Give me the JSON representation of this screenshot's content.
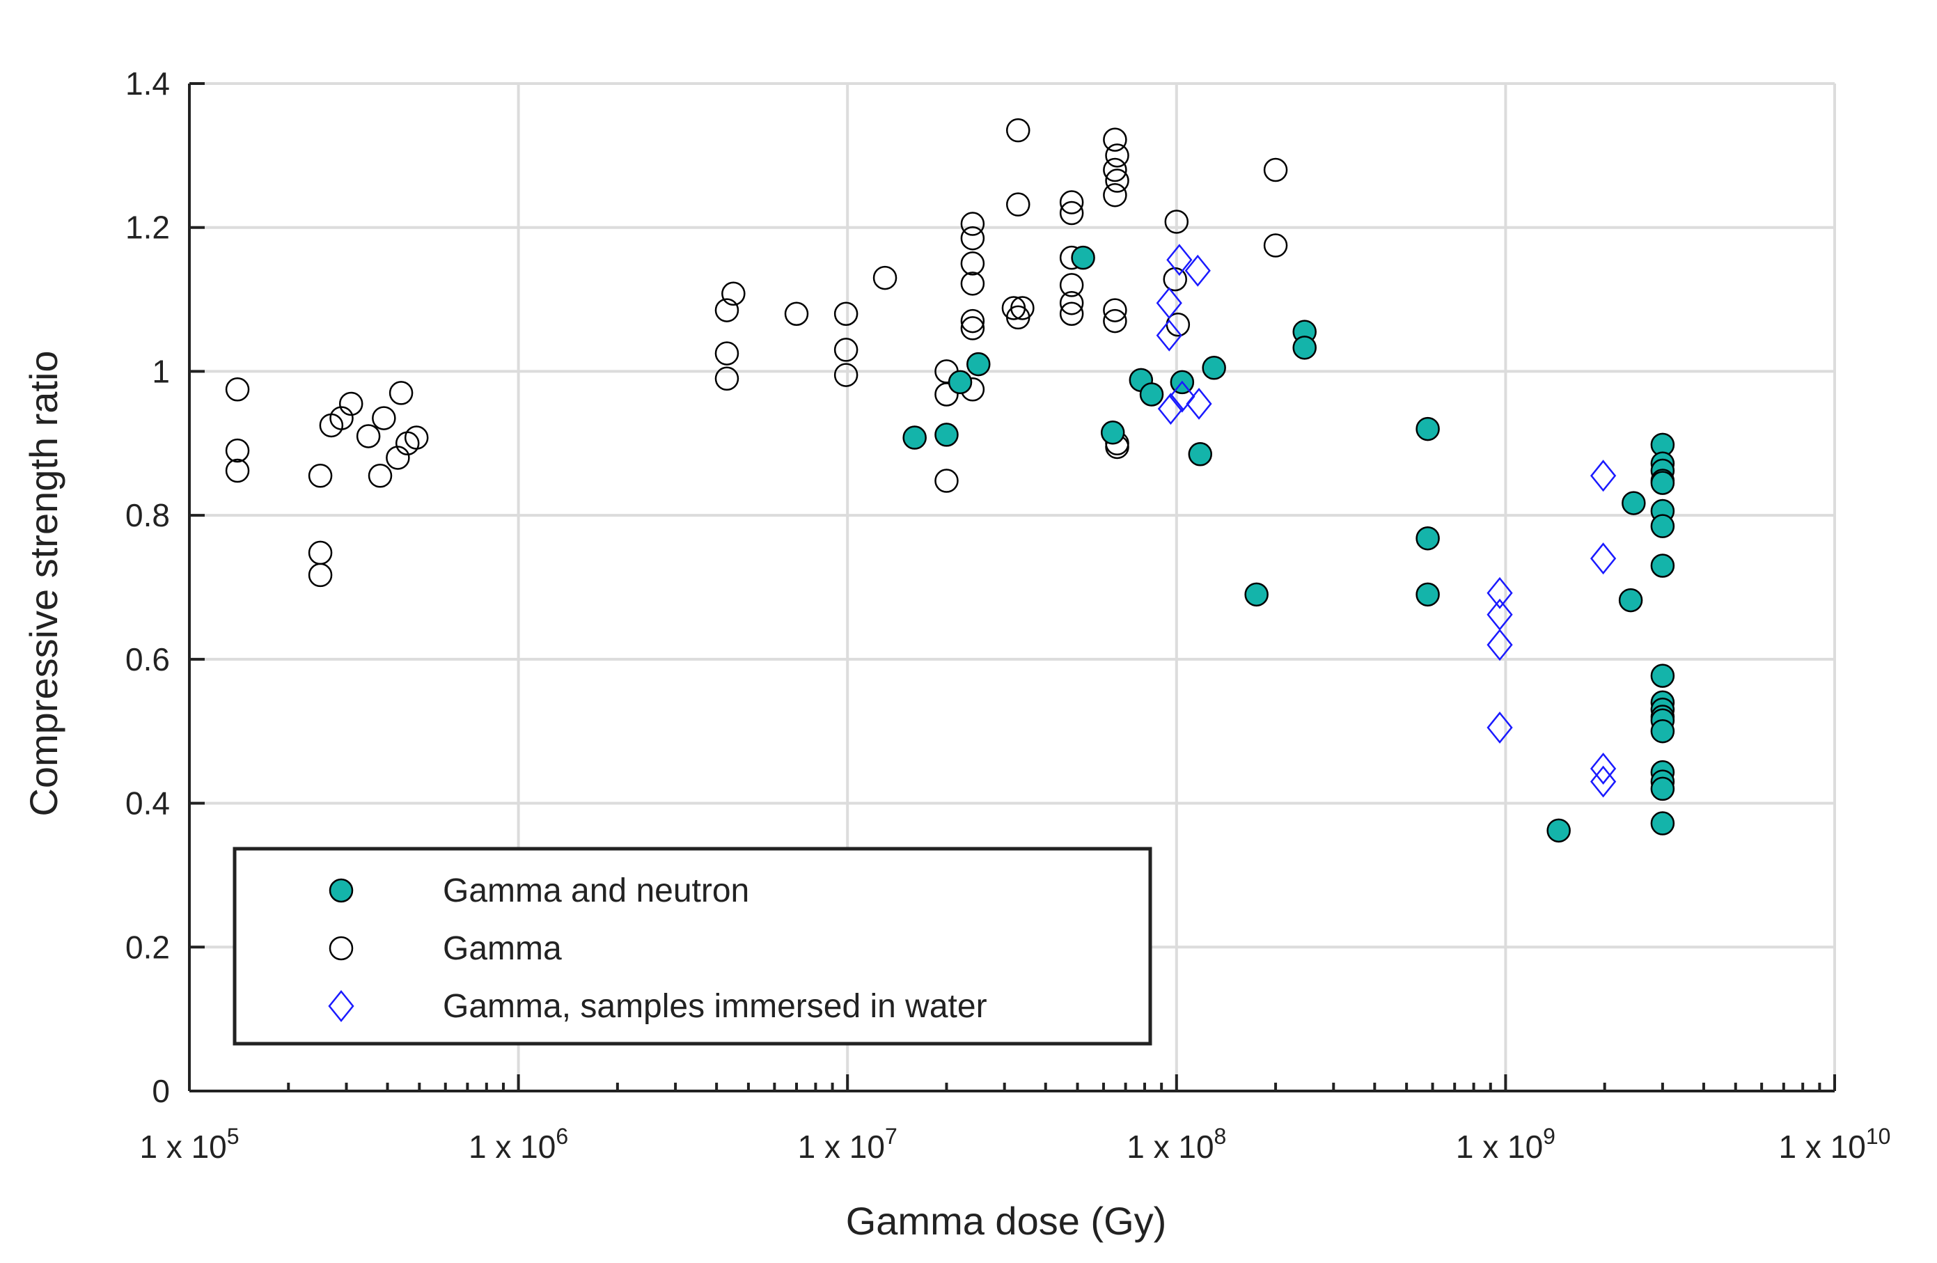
{
  "chart_data": {
    "type": "scatter",
    "title": "",
    "xlabel": "Gamma dose (Gy)",
    "ylabel": "Compressive strength ratio",
    "xscale": "log",
    "xlim": [
      100000,
      10000000000
    ],
    "ylim": [
      0,
      1.4
    ],
    "grid": true,
    "legend_position": "bottom-left",
    "x_ticks": [
      {
        "value": 100000,
        "base": "1 x 10",
        "exp": "5"
      },
      {
        "value": 1000000,
        "base": "1 x 10",
        "exp": "6"
      },
      {
        "value": 10000000,
        "base": "1 x 10",
        "exp": "7"
      },
      {
        "value": 100000000,
        "base": "1 x 10",
        "exp": "8"
      },
      {
        "value": 1000000000,
        "base": "1 x 10",
        "exp": "9"
      },
      {
        "value": 10000000000,
        "base": "1 x 10",
        "exp": "10"
      }
    ],
    "y_ticks": [
      {
        "value": 0,
        "label": "0"
      },
      {
        "value": 0.2,
        "label": "0.2"
      },
      {
        "value": 0.4,
        "label": "0.4"
      },
      {
        "value": 0.6,
        "label": "0.6"
      },
      {
        "value": 0.8,
        "label": "0.8"
      },
      {
        "value": 1.0,
        "label": "1"
      },
      {
        "value": 1.2,
        "label": "1.2"
      },
      {
        "value": 1.4,
        "label": "1.4"
      }
    ],
    "series": [
      {
        "name": "Gamma",
        "marker": "circle-open",
        "color": "#000000",
        "fill": "none",
        "points": [
          [
            140000,
            0.975
          ],
          [
            140000,
            0.89
          ],
          [
            140000,
            0.862
          ],
          [
            250000,
            0.855
          ],
          [
            250000,
            0.748
          ],
          [
            250000,
            0.717
          ],
          [
            270000,
            0.925
          ],
          [
            290000,
            0.935
          ],
          [
            310000,
            0.955
          ],
          [
            350000,
            0.91
          ],
          [
            380000,
            0.855
          ],
          [
            390000,
            0.935
          ],
          [
            430000,
            0.88
          ],
          [
            440000,
            0.97
          ],
          [
            460000,
            0.9
          ],
          [
            490000,
            0.908
          ],
          [
            4300000,
            1.085
          ],
          [
            4300000,
            1.025
          ],
          [
            4300000,
            0.99
          ],
          [
            4500000,
            1.108
          ],
          [
            7000000,
            1.08
          ],
          [
            9900000,
            1.08
          ],
          [
            9900000,
            1.03
          ],
          [
            9900000,
            0.995
          ],
          [
            13000000,
            1.13
          ],
          [
            20000000,
            1.0
          ],
          [
            20000000,
            0.968
          ],
          [
            20000000,
            0.848
          ],
          [
            24000000,
            1.205
          ],
          [
            24000000,
            1.185
          ],
          [
            24000000,
            1.15
          ],
          [
            24000000,
            1.122
          ],
          [
            24000000,
            1.07
          ],
          [
            24000000,
            1.06
          ],
          [
            24000000,
            0.975
          ],
          [
            33000000,
            1.335
          ],
          [
            33000000,
            1.232
          ],
          [
            32000000,
            1.088
          ],
          [
            34000000,
            1.088
          ],
          [
            33000000,
            1.075
          ],
          [
            48000000,
            1.235
          ],
          [
            48000000,
            1.22
          ],
          [
            48000000,
            1.158
          ],
          [
            48000000,
            1.12
          ],
          [
            48000000,
            1.095
          ],
          [
            48000000,
            1.08
          ],
          [
            65000000,
            1.322
          ],
          [
            66000000,
            1.3
          ],
          [
            65000000,
            1.28
          ],
          [
            66000000,
            1.265
          ],
          [
            65000000,
            1.245
          ],
          [
            65000000,
            1.085
          ],
          [
            65000000,
            1.07
          ],
          [
            66000000,
            0.9
          ],
          [
            66000000,
            0.895
          ],
          [
            100000000,
            1.208
          ],
          [
            99000000,
            1.128
          ],
          [
            101000000,
            1.065
          ],
          [
            200000000,
            1.28
          ],
          [
            200000000,
            1.175
          ]
        ]
      },
      {
        "name": "Gamma and neutron",
        "marker": "circle-filled",
        "color": "#000000",
        "fill": "#14b4aa",
        "points": [
          [
            16000000,
            0.908
          ],
          [
            20000000,
            0.912
          ],
          [
            22000000,
            0.985
          ],
          [
            25000000,
            1.01
          ],
          [
            52000000,
            1.158
          ],
          [
            64000000,
            0.915
          ],
          [
            78000000,
            0.988
          ],
          [
            84000000,
            0.968
          ],
          [
            104000000,
            0.985
          ],
          [
            118000000,
            0.885
          ],
          [
            130000000,
            1.005
          ],
          [
            175000000,
            0.69
          ],
          [
            245000000,
            1.055
          ],
          [
            245000000,
            1.033
          ],
          [
            580000000,
            0.92
          ],
          [
            580000000,
            0.768
          ],
          [
            580000000,
            0.69
          ],
          [
            1450000000,
            0.362
          ],
          [
            2450000000,
            0.817
          ],
          [
            2400000000,
            0.682
          ],
          [
            3000000000,
            0.898
          ],
          [
            3000000000,
            0.872
          ],
          [
            3000000000,
            0.862
          ],
          [
            3000000000,
            0.848
          ],
          [
            3000000000,
            0.845
          ],
          [
            3000000000,
            0.806
          ],
          [
            3000000000,
            0.785
          ],
          [
            3000000000,
            0.73
          ],
          [
            3000000000,
            0.577
          ],
          [
            3000000000,
            0.54
          ],
          [
            3000000000,
            0.53
          ],
          [
            3000000000,
            0.52
          ],
          [
            3000000000,
            0.515
          ],
          [
            3000000000,
            0.5
          ],
          [
            3000000000,
            0.443
          ],
          [
            3000000000,
            0.43
          ],
          [
            3000000000,
            0.42
          ],
          [
            3000000000,
            0.372
          ]
        ]
      },
      {
        "name": "Gamma, samples immersed in water",
        "marker": "diamond-open",
        "color": "#1a1aff",
        "fill": "none",
        "points": [
          [
            95000000,
            1.095
          ],
          [
            95000000,
            1.05
          ],
          [
            102000000,
            1.155
          ],
          [
            116000000,
            1.14
          ],
          [
            96000000,
            0.948
          ],
          [
            104000000,
            0.965
          ],
          [
            117000000,
            0.955
          ],
          [
            960000000,
            0.692
          ],
          [
            960000000,
            0.662
          ],
          [
            960000000,
            0.62
          ],
          [
            960000000,
            0.505
          ],
          [
            1980000000,
            0.855
          ],
          [
            1980000000,
            0.74
          ],
          [
            1980000000,
            0.448
          ],
          [
            1980000000,
            0.43
          ]
        ]
      }
    ],
    "legend": [
      {
        "label": "Gamma and neutron",
        "marker": "circle-filled"
      },
      {
        "label": "Gamma",
        "marker": "circle-open"
      },
      {
        "label": "Gamma, samples immersed in water",
        "marker": "diamond-open"
      }
    ]
  }
}
